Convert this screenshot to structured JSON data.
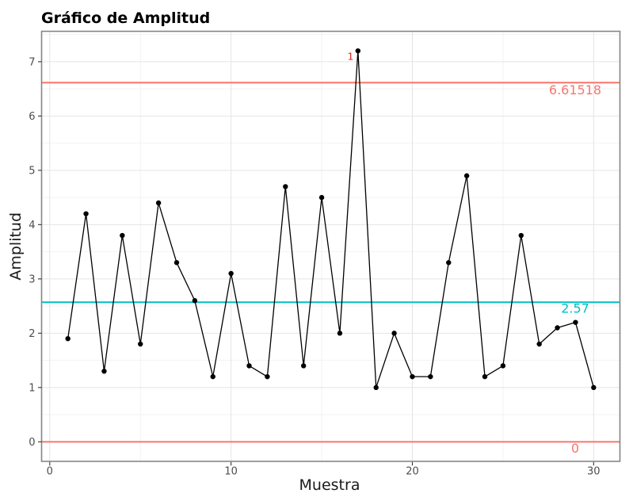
{
  "chart_data": {
    "type": "line",
    "title": "Gráfico de Amplitud",
    "xlabel": "Muestra",
    "ylabel": "Amplitud",
    "x": [
      1,
      2,
      3,
      4,
      5,
      6,
      7,
      8,
      9,
      10,
      11,
      12,
      13,
      14,
      15,
      16,
      17,
      18,
      19,
      20,
      21,
      22,
      23,
      24,
      25,
      26,
      27,
      28,
      29,
      30
    ],
    "values": [
      1.9,
      4.2,
      1.3,
      3.8,
      1.8,
      4.4,
      3.3,
      2.6,
      1.2,
      3.1,
      1.4,
      1.2,
      4.7,
      1.4,
      4.5,
      2.0,
      7.2,
      1.0,
      2.0,
      1.2,
      1.2,
      3.3,
      4.9,
      1.2,
      1.4,
      3.8,
      1.8,
      2.1,
      2.2,
      1.0
    ],
    "series_color": "#000000",
    "marker": "circle",
    "control_lines": {
      "ucl": {
        "value": 6.61518,
        "label": "6.61518",
        "color": "#F8766D"
      },
      "center": {
        "value": 2.57,
        "label": "2.57",
        "color": "#00BFC4"
      },
      "lcl": {
        "value": 0,
        "label": "0",
        "color": "#F8766D"
      }
    },
    "violations": [
      {
        "x": 17,
        "y": 7.2,
        "label": "1",
        "color": "#e02420"
      }
    ],
    "axes": {
      "x_ticks": [
        0,
        10,
        20,
        30
      ],
      "y_ticks": [
        0,
        1,
        2,
        3,
        4,
        5,
        6,
        7
      ],
      "x_minor_ticks": [
        5,
        15,
        25
      ],
      "y_minor_ticks": [
        0.5,
        1.5,
        2.5,
        3.5,
        4.5,
        5.5,
        6.5,
        7.5
      ],
      "xlim": [
        -0.45,
        31.45
      ],
      "ylim": [
        -0.36,
        7.56
      ]
    },
    "grid": "major-and-minor",
    "legend": "none",
    "colors": {
      "background": "#ffffff",
      "panel_background": "#ffffff",
      "grid_major": "#e4e4e4",
      "grid_minor": "#f2f2f2",
      "panel_border": "#858585",
      "tick_mark": "#333333",
      "tick_label": "#4d4d4d",
      "axis_title": "#1a1a1a",
      "title": "#000000"
    }
  }
}
